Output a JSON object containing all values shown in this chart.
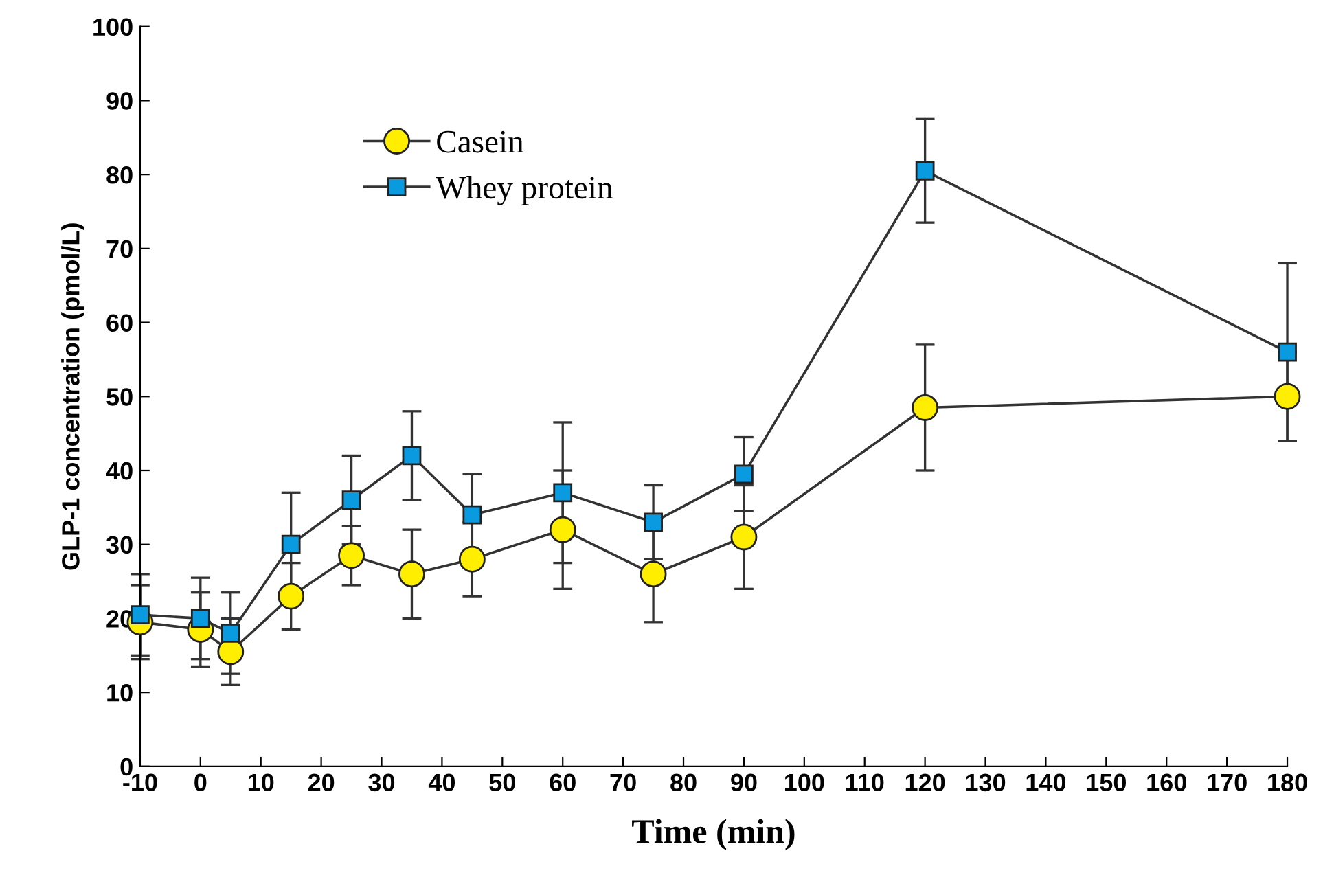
{
  "chart_data": {
    "type": "line",
    "xlabel": "Time (min)",
    "ylabel": "GLP-1 concentration (pmol/L)",
    "x": [
      -10,
      0,
      5,
      15,
      25,
      35,
      45,
      60,
      75,
      90,
      120,
      180
    ],
    "xlim": [
      -10,
      180
    ],
    "xticks": [
      -10,
      0,
      10,
      20,
      30,
      40,
      50,
      60,
      70,
      80,
      90,
      100,
      110,
      120,
      130,
      140,
      150,
      160,
      170,
      180
    ],
    "ylim": [
      0,
      100
    ],
    "yticks": [
      0,
      10,
      20,
      30,
      40,
      50,
      60,
      70,
      80,
      90,
      100
    ],
    "grid": false,
    "legend": "top left",
    "line_style": "solid",
    "series": [
      {
        "name": "Casein",
        "color": "#ffee00",
        "marker": "circle",
        "values": [
          19.5,
          18.5,
          15.5,
          23,
          28.5,
          26,
          28,
          32,
          26,
          31,
          48.5,
          50
        ],
        "errors": [
          5,
          5,
          4.5,
          4.5,
          4,
          6,
          5,
          8,
          6.5,
          7,
          8.5,
          6
        ]
      },
      {
        "name": "Whey protein",
        "color": "#0a9ae0",
        "marker": "square",
        "values": [
          20.5,
          20,
          18,
          30,
          36,
          42,
          34,
          37,
          33,
          39.5,
          80.5,
          56
        ],
        "errors": [
          5.5,
          5.5,
          5.5,
          7,
          6,
          6,
          5.5,
          9.5,
          5,
          5,
          7,
          12
        ]
      }
    ]
  }
}
